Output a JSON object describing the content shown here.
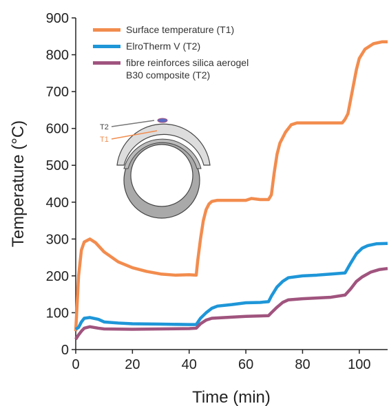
{
  "chart_data": {
    "type": "line",
    "xlabel": "Time (min)",
    "ylabel": "Temperature (°C)",
    "xlim": [
      0,
      110
    ],
    "ylim": [
      0,
      900
    ],
    "xticks": [
      0,
      20,
      40,
      60,
      80,
      100
    ],
    "yticks": [
      0,
      100,
      200,
      300,
      400,
      500,
      600,
      700,
      800,
      900
    ],
    "annotations": [
      "T2",
      "T1"
    ],
    "series": [
      {
        "name": "Surface temperature (T1)",
        "color": "#f28c4e",
        "x": [
          0,
          1,
          2,
          3,
          5,
          7,
          10,
          15,
          20,
          25,
          30,
          35,
          40,
          42.5,
          43,
          44,
          45,
          46,
          47,
          48,
          50,
          55,
          60,
          62,
          65,
          68,
          69,
          70,
          71,
          72,
          74,
          76,
          78,
          85,
          90,
          94,
          95,
          96,
          97,
          98,
          99,
          100,
          102,
          105,
          108,
          110
        ],
        "values": [
          50,
          200,
          270,
          292,
          300,
          290,
          265,
          238,
          222,
          212,
          205,
          202,
          203,
          202,
          240,
          300,
          350,
          380,
          395,
          402,
          405,
          405,
          405,
          410,
          407,
          407,
          420,
          480,
          530,
          560,
          590,
          610,
          615,
          615,
          615,
          615,
          625,
          640,
          680,
          720,
          760,
          790,
          815,
          830,
          835,
          835
        ]
      },
      {
        "name": "ElroTherm V (T2)",
        "color": "#1e96d8",
        "x": [
          0,
          1,
          2,
          3,
          5,
          8,
          10,
          15,
          20,
          30,
          40,
          42.5,
          44,
          46,
          48,
          50,
          55,
          60,
          65,
          68,
          69,
          71,
          73,
          75,
          80,
          85,
          90,
          95,
          97,
          99,
          101,
          103,
          106,
          110
        ],
        "values": [
          55,
          60,
          75,
          85,
          87,
          82,
          75,
          72,
          70,
          69,
          68,
          68,
          85,
          100,
          112,
          118,
          122,
          127,
          128,
          130,
          145,
          170,
          185,
          195,
          200,
          202,
          205,
          208,
          235,
          260,
          275,
          282,
          287,
          288
        ]
      },
      {
        "name": "fibre reinforces silica aerogel\nB30 composite (T2)",
        "color": "#a0547e",
        "x": [
          0,
          1,
          2,
          3,
          5,
          8,
          10,
          20,
          30,
          40,
          42.5,
          44,
          46,
          48,
          55,
          60,
          68,
          69,
          71,
          73,
          75,
          80,
          90,
          95,
          97,
          99,
          101,
          104,
          107,
          110
        ],
        "values": [
          28,
          40,
          50,
          58,
          62,
          58,
          56,
          55,
          56,
          57,
          58,
          70,
          80,
          85,
          88,
          90,
          92,
          100,
          115,
          128,
          135,
          138,
          142,
          148,
          165,
          185,
          197,
          210,
          217,
          220
        ]
      }
    ]
  }
}
